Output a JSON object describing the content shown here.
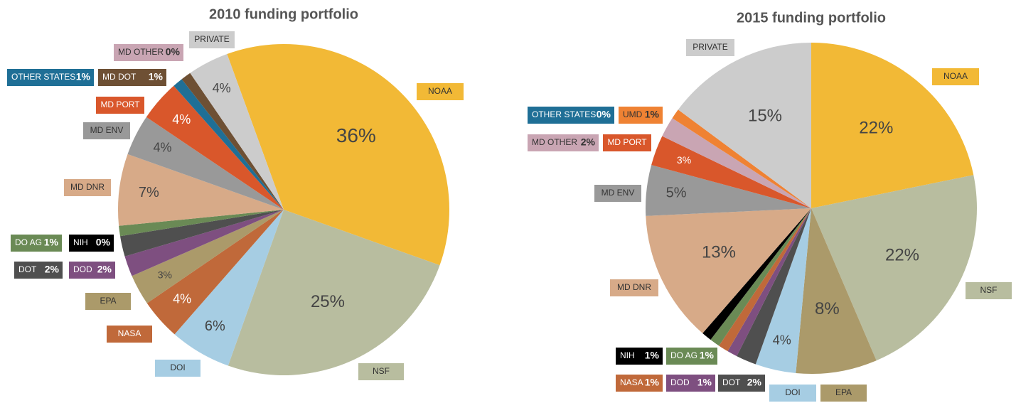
{
  "chart_data": [
    {
      "type": "pie",
      "title": "2010 funding portfolio",
      "categories": [
        "NOAA",
        "NSF",
        "DOI",
        "NASA",
        "EPA",
        "DOD",
        "DOT",
        "DO AG",
        "NIH",
        "MD DNR",
        "MD ENV",
        "MD PORT",
        "OTHER STATES",
        "MD DOT",
        "MD OTHER",
        "PRIVATE"
      ],
      "values": [
        36,
        25,
        6,
        4,
        3,
        2,
        2,
        1,
        0,
        7,
        4,
        4,
        1,
        1,
        0,
        4
      ],
      "value_labels": [
        "36%",
        "25%",
        "6%",
        "4%",
        "3%",
        "2%",
        "2%",
        "1%",
        "0%",
        "7%",
        "4%",
        "4%",
        "1%",
        "1%",
        "0%",
        "4%"
      ],
      "colors": [
        "#f2b936",
        "#b8bd9f",
        "#a6cde3",
        "#c0693a",
        "#ab9a6a",
        "#7e4f80",
        "#4f4f4f",
        "#6a8a55",
        "#000000",
        "#d7aa88",
        "#999999",
        "#d9572b",
        "#1f6f96",
        "#6e5034",
        "#c9a5b3",
        "#cccccc"
      ]
    },
    {
      "type": "pie",
      "title": "2015 funding portfolio",
      "categories": [
        "NOAA",
        "NSF",
        "EPA",
        "DOI",
        "DOT",
        "DOD",
        "NASA",
        "DO AG",
        "NIH",
        "MD DNR",
        "MD ENV",
        "MD PORT",
        "MD OTHER",
        "UMD",
        "OTHER STATES",
        "PRIVATE"
      ],
      "values": [
        22,
        22,
        8,
        4,
        2,
        1,
        1,
        1,
        1,
        13,
        5,
        3,
        2,
        1,
        0,
        15
      ],
      "value_labels": [
        "22%",
        "22%",
        "8%",
        "4%",
        "2%",
        "1%",
        "1%",
        "1%",
        "1%",
        "13%",
        "5%",
        "3%",
        "2%",
        "1%",
        "0%",
        "15%"
      ],
      "colors": [
        "#f2b936",
        "#b8bd9f",
        "#ab9a6a",
        "#a6cde3",
        "#4f4f4f",
        "#7e4f80",
        "#c0693a",
        "#6a8a55",
        "#000000",
        "#d7aa88",
        "#999999",
        "#d9572b",
        "#c9a5b3",
        "#ef8233",
        "#1f6f96",
        "#cccccc"
      ]
    }
  ]
}
